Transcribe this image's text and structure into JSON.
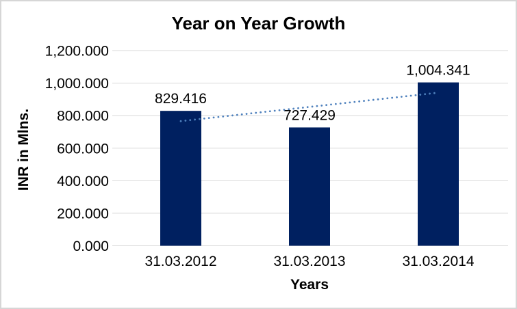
{
  "chart_data": {
    "type": "bar",
    "title": "Year on Year Growth",
    "xlabel": "Years",
    "ylabel": "INR in Mlns.",
    "categories": [
      "31.03.2012",
      "31.03.2013",
      "31.03.2014"
    ],
    "values": [
      829.416,
      727.429,
      1004.341
    ],
    "value_labels": [
      "829.416",
      "727.429",
      "1,004.341"
    ],
    "y_ticks": [
      "0.000",
      "200.000",
      "400.000",
      "600.000",
      "800.000",
      "1,000.000",
      "1,200.000"
    ],
    "ylim": [
      0,
      1200
    ],
    "grid": true,
    "legend": "none",
    "trendline": {
      "present": true,
      "fit": "linear",
      "style": "dotted"
    },
    "colors": {
      "bar": "#002060",
      "trendline": "#4f81bd",
      "gridline": "#d9d9d9",
      "axis_line": "#d9d9d9",
      "text": "#000000",
      "background": "#ffffff"
    }
  }
}
